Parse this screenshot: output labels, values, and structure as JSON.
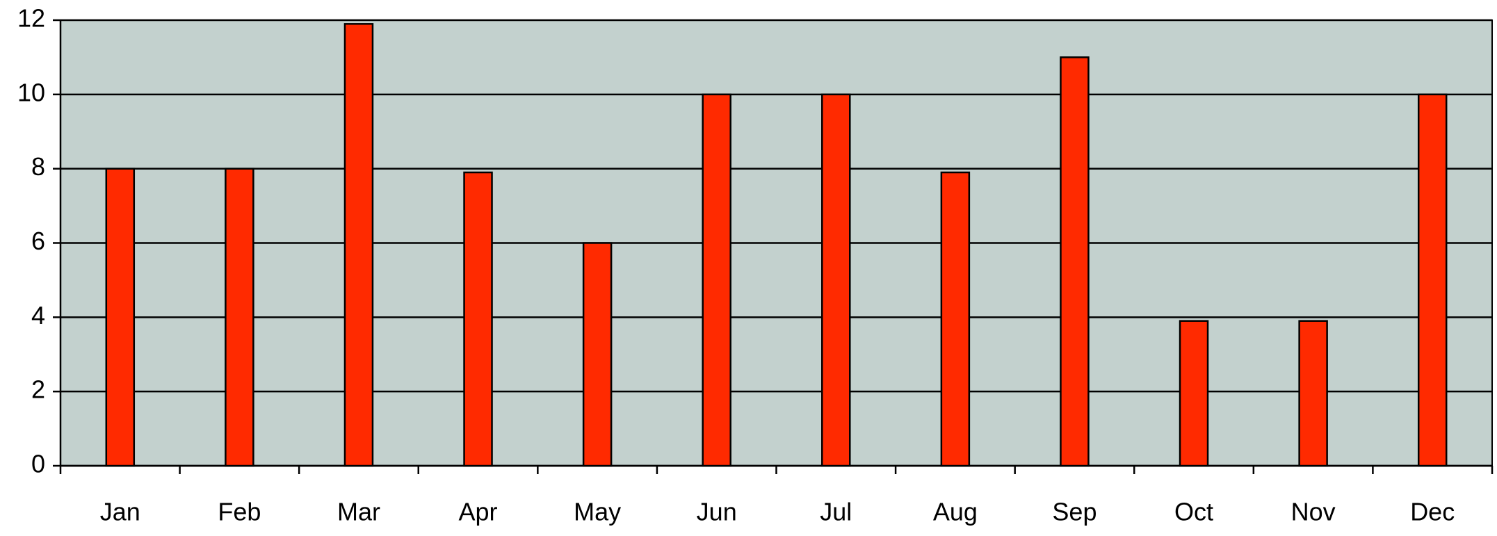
{
  "chart_data": {
    "type": "bar",
    "categories": [
      "Jan",
      "Feb",
      "Mar",
      "Apr",
      "May",
      "Jun",
      "Jul",
      "Aug",
      "Sep",
      "Oct",
      "Nov",
      "Dec"
    ],
    "values": [
      8,
      8,
      11.9,
      7.9,
      6,
      10,
      10,
      7.9,
      11,
      3.9,
      3.9,
      10
    ],
    "color": "#ff2a00",
    "background": "#c3d1ce",
    "ylim": [
      0,
      12
    ],
    "yticks": [
      0,
      2,
      4,
      6,
      8,
      10,
      12
    ],
    "grid": true
  }
}
